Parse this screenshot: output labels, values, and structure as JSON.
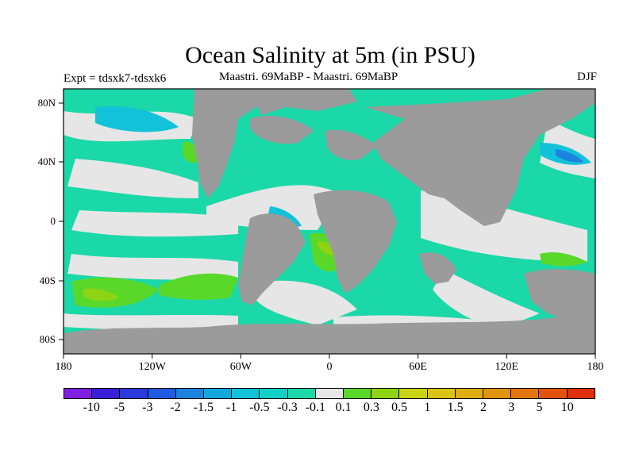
{
  "title": "Ocean Salinity at 5m (in PSU)",
  "subtitle_left": "Expt = tdsxk7-tdsxk6",
  "subtitle_center": "Maastri.  69MaBP - Maastri.  69MaBP",
  "subtitle_right": "DJF",
  "x_ticks": [
    "180",
    "120W",
    "60W",
    "0",
    "60E",
    "120E",
    "180"
  ],
  "y_ticks": [
    "80N",
    "40N",
    "0",
    "40S",
    "80S"
  ],
  "colorbar": {
    "labels": [
      "-10",
      "-5",
      "-3",
      "-2",
      "-1.5",
      "-1",
      "-0.5",
      "-0.3",
      "-0.1",
      "0.1",
      "0.3",
      "0.5",
      "1",
      "1.5",
      "2",
      "3",
      "5",
      "10"
    ],
    "colors": [
      "#7f1fe0",
      "#3a1fd8",
      "#2a3ad8",
      "#1f5ae0",
      "#1c82e0",
      "#12a8de",
      "#12c2d8",
      "#12cfc8",
      "#1ad8a8",
      "#e6e6e6",
      "#5ad82a",
      "#8ed414",
      "#c8d414",
      "#dcc212",
      "#deae10",
      "#e09410",
      "#e2740e",
      "#e2520c",
      "#de300a"
    ]
  },
  "palette": {
    "land": "#9b9b9b",
    "neutral": "#e6e6e6",
    "teal": "#1ad8a8",
    "cyan": "#12c2d8",
    "green": "#5ad82a",
    "lime": "#8ed414",
    "blue": "#1c82e0"
  }
}
